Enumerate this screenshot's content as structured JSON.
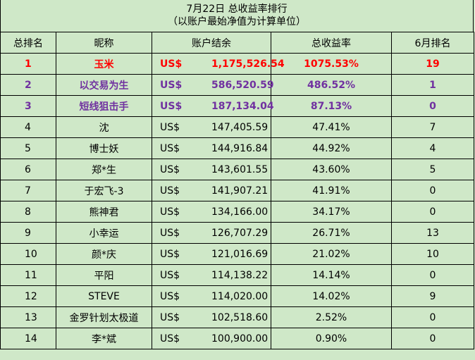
{
  "title": {
    "line1": "7月22日 总收益率排行",
    "line2": "（以账户最始净值为计算单位）"
  },
  "headers": {
    "rank": "总排名",
    "nickname": "昵称",
    "balance": "账户结余",
    "return": "总收益率",
    "june_rank": "6月排名"
  },
  "rows": [
    {
      "rank": "1",
      "nickname": "玉米",
      "currency": "US$",
      "balance": "1,175,526.54",
      "return": "1075.53%",
      "june_rank": "19",
      "highlight": "red"
    },
    {
      "rank": "2",
      "nickname": "以交易为生",
      "currency": "US$",
      "balance": "586,520.59",
      "return": "486.52%",
      "june_rank": "1",
      "highlight": "purple"
    },
    {
      "rank": "3",
      "nickname": "短线狙击手",
      "currency": "US$",
      "balance": "187,134.04",
      "return": "87.13%",
      "june_rank": "0",
      "highlight": "purple"
    },
    {
      "rank": "4",
      "nickname": "沈",
      "currency": "US$",
      "balance": "147,405.59",
      "return": "47.41%",
      "june_rank": "7",
      "highlight": ""
    },
    {
      "rank": "5",
      "nickname": "博士妖",
      "currency": "US$",
      "balance": "144,916.84",
      "return": "44.92%",
      "june_rank": "4",
      "highlight": ""
    },
    {
      "rank": "6",
      "nickname": "郑*生",
      "currency": "US$",
      "balance": "143,601.55",
      "return": "43.60%",
      "june_rank": "5",
      "highlight": ""
    },
    {
      "rank": "7",
      "nickname": "于宏飞-3",
      "currency": "US$",
      "balance": "141,907.21",
      "return": "41.91%",
      "june_rank": "0",
      "highlight": ""
    },
    {
      "rank": "8",
      "nickname": "熊神君",
      "currency": "US$",
      "balance": "134,166.00",
      "return": "34.17%",
      "june_rank": "0",
      "highlight": ""
    },
    {
      "rank": "9",
      "nickname": "小幸运",
      "currency": "US$",
      "balance": "126,707.29",
      "return": "26.71%",
      "june_rank": "13",
      "highlight": ""
    },
    {
      "rank": "10",
      "nickname": "颜*庆",
      "currency": "US$",
      "balance": "121,016.69",
      "return": "21.02%",
      "june_rank": "10",
      "highlight": ""
    },
    {
      "rank": "11",
      "nickname": "平阳",
      "currency": "US$",
      "balance": "114,138.22",
      "return": "14.14%",
      "june_rank": "0",
      "highlight": ""
    },
    {
      "rank": "12",
      "nickname": "STEVE",
      "currency": "US$",
      "balance": "114,020.00",
      "return": "14.02%",
      "june_rank": "9",
      "highlight": ""
    },
    {
      "rank": "13",
      "nickname": "金罗针划太极道",
      "currency": "US$",
      "balance": "102,518.60",
      "return": "2.52%",
      "june_rank": "0",
      "highlight": ""
    },
    {
      "rank": "14",
      "nickname": "李*斌",
      "currency": "US$",
      "balance": "100,900.00",
      "return": "0.90%",
      "june_rank": "0",
      "highlight": ""
    }
  ]
}
